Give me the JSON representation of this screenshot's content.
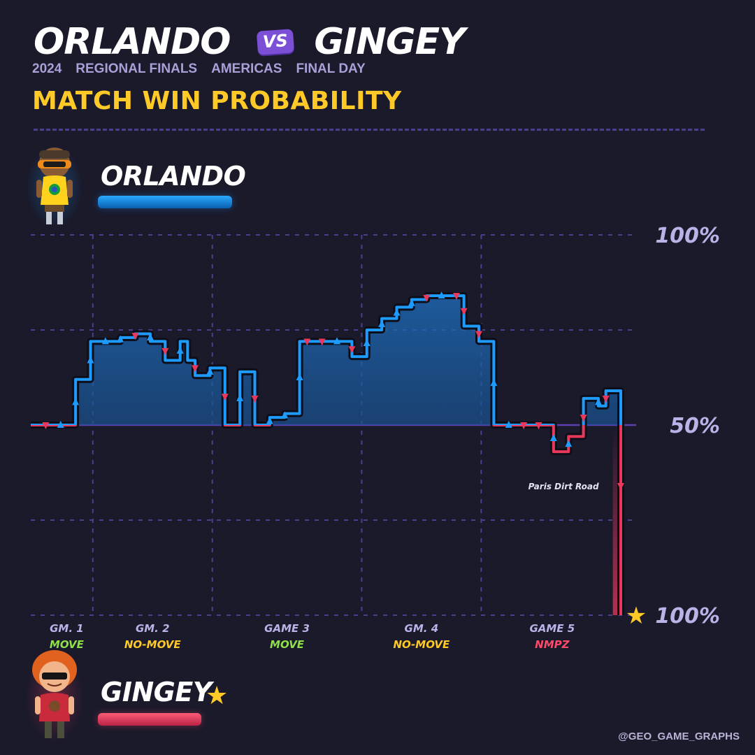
{
  "header": {
    "player1": "ORLANDO",
    "vs": "VS",
    "player2": "GINGEY",
    "subtitle": [
      "2024",
      "REGIONAL FINALS",
      "AMERICAS",
      "FINAL DAY"
    ],
    "chart_title": "MATCH WIN PROBABILITY"
  },
  "players": {
    "top": {
      "name": "ORLANDO",
      "color": "#1e9bff",
      "avatar_icon": "orlando-avatar-icon"
    },
    "bottom": {
      "name": "GINGEY",
      "color": "#e8385c",
      "avatar_icon": "gingey-avatar-icon",
      "winner_icon": "star-icon"
    }
  },
  "credit": "@GEO_GAME_GRAPHS",
  "chart_data": {
    "type": "line",
    "title": "MATCH WIN PROBABILITY",
    "y_meaning": "Orlando match win probability (%)",
    "ylim": [
      0,
      100
    ],
    "y_ticks": [
      {
        "value": 100,
        "label": "100%"
      },
      {
        "value": 50,
        "label": "50%"
      },
      {
        "value": 0,
        "label": "100%"
      }
    ],
    "grid": true,
    "x_range": [
      0,
      78
    ],
    "game_boundaries": [
      7,
      23,
      43,
      59
    ],
    "games": [
      {
        "label": "GM. 1",
        "mode": "MOVE",
        "x_center": 3.5
      },
      {
        "label": "GM. 2",
        "mode": "NO-MOVE",
        "x_center": 15
      },
      {
        "label": "GAME 3",
        "mode": "MOVE",
        "x_center": 33
      },
      {
        "label": "GM. 4",
        "mode": "NO-MOVE",
        "x_center": 51
      },
      {
        "label": "GAME 5",
        "mode": "NMPZ",
        "x_center": 68.5
      }
    ],
    "mode_colors": {
      "MOVE": "#8fe04a",
      "NO-MOVE": "#ffc928",
      "NMPZ": "#ff4a6a"
    },
    "series": [
      {
        "steps": [
          [
            0,
            50
          ],
          [
            2,
            50
          ],
          [
            4,
            50
          ],
          [
            6,
            62
          ],
          [
            8,
            72
          ],
          [
            10,
            72
          ],
          [
            12,
            73
          ],
          [
            14,
            74
          ],
          [
            16,
            72
          ],
          [
            18,
            67
          ],
          [
            20,
            72
          ],
          [
            21,
            67
          ],
          [
            22,
            63
          ],
          [
            24,
            65
          ],
          [
            26,
            50
          ],
          [
            28,
            64
          ],
          [
            30,
            50
          ],
          [
            32,
            52
          ],
          [
            34,
            53
          ],
          [
            36,
            72
          ],
          [
            37,
            72
          ],
          [
            39,
            72
          ],
          [
            41,
            72
          ],
          [
            43,
            68
          ],
          [
            45,
            75
          ],
          [
            47,
            78
          ],
          [
            49,
            81
          ],
          [
            51,
            83
          ],
          [
            53,
            84
          ],
          [
            55,
            84
          ],
          [
            57,
            84
          ],
          [
            58,
            76
          ],
          [
            60,
            72
          ],
          [
            62,
            50
          ],
          [
            64,
            50
          ],
          [
            66,
            50
          ],
          [
            68,
            50
          ],
          [
            70,
            43
          ],
          [
            72,
            47
          ],
          [
            74,
            57
          ],
          [
            76,
            55
          ],
          [
            77,
            59
          ],
          [
            79,
            0
          ]
        ],
        "markers": [
          {
            "x": 2,
            "dir": "down"
          },
          {
            "x": 4,
            "dir": "up"
          },
          {
            "x": 6,
            "dir": "up"
          },
          {
            "x": 8,
            "dir": "up"
          },
          {
            "x": 10,
            "dir": "up"
          },
          {
            "x": 12,
            "dir": "up"
          },
          {
            "x": 14,
            "dir": "down"
          },
          {
            "x": 16,
            "dir": "up"
          },
          {
            "x": 18,
            "dir": "down"
          },
          {
            "x": 20,
            "dir": "up"
          },
          {
            "x": 22,
            "dir": "down"
          },
          {
            "x": 24,
            "dir": "up"
          },
          {
            "x": 26,
            "dir": "down"
          },
          {
            "x": 28,
            "dir": "up"
          },
          {
            "x": 30,
            "dir": "down"
          },
          {
            "x": 32,
            "dir": "up"
          },
          {
            "x": 34,
            "dir": "up"
          },
          {
            "x": 36,
            "dir": "up"
          },
          {
            "x": 37,
            "dir": "down"
          },
          {
            "x": 39,
            "dir": "down"
          },
          {
            "x": 41,
            "dir": "up"
          },
          {
            "x": 43,
            "dir": "down"
          },
          {
            "x": 45,
            "dir": "up"
          },
          {
            "x": 47,
            "dir": "up"
          },
          {
            "x": 49,
            "dir": "up"
          },
          {
            "x": 51,
            "dir": "up"
          },
          {
            "x": 53,
            "dir": "down"
          },
          {
            "x": 55,
            "dir": "up"
          },
          {
            "x": 57,
            "dir": "down"
          },
          {
            "x": 58,
            "dir": "down"
          },
          {
            "x": 60,
            "dir": "down"
          },
          {
            "x": 62,
            "dir": "up"
          },
          {
            "x": 64,
            "dir": "up"
          },
          {
            "x": 66,
            "dir": "down"
          },
          {
            "x": 68,
            "dir": "down"
          },
          {
            "x": 70,
            "dir": "up"
          },
          {
            "x": 72,
            "dir": "up"
          },
          {
            "x": 74,
            "dir": "down"
          },
          {
            "x": 76,
            "dir": "up"
          },
          {
            "x": 77,
            "dir": "down"
          }
        ]
      }
    ],
    "annotations": [
      {
        "text": "Paris Dirt Road",
        "x": 77,
        "y": 34
      }
    ],
    "end_marker": {
      "icon": "star-icon",
      "x": 79,
      "y": 0
    }
  }
}
